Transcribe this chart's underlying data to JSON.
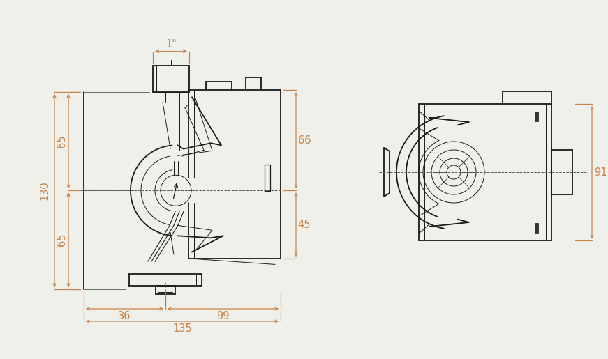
{
  "bg_color": "#f0f0eb",
  "line_color": "#1a1a1a",
  "dim_color": "#c8824a",
  "lw_main": 1.3,
  "lw_thin": 0.7,
  "lw_dim": 0.9,
  "font_size": 10.5,
  "dimensions": {
    "one_inch": "1\"",
    "d130": "130",
    "d65a": "65",
    "d65b": "65",
    "d66": "66",
    "d45": "45",
    "d36": "36",
    "d99": "99",
    "d135": "135",
    "d91": "91"
  }
}
